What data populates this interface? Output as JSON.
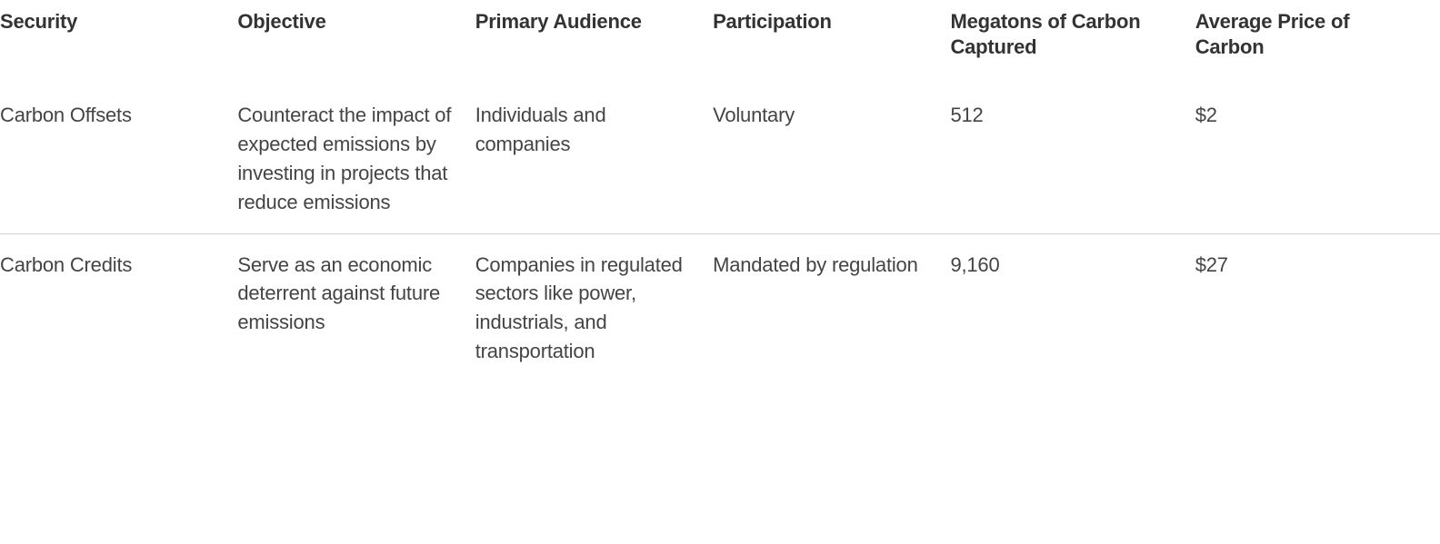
{
  "table": {
    "type": "table",
    "background_color": "#ffffff",
    "divider_color": "#d0d0d0",
    "header": {
      "font_weight": 700,
      "font_size_pt": 17,
      "color": "#333333"
    },
    "body": {
      "font_weight": 300,
      "font_size_pt": 17,
      "color": "#444444"
    },
    "column_widths_pct": [
      16.5,
      16.5,
      16.5,
      16.5,
      17,
      17
    ],
    "columns": [
      "Security",
      "Objective",
      "Primary Audience",
      "Participation",
      "Megatons of Carbon Captured",
      "Average Price of Carbon"
    ],
    "rows": [
      {
        "security": "Carbon Offsets",
        "objective": "Counteract the impact of expected emissions by investing in projects that reduce emissions",
        "audience": "Individuals and companies",
        "participation": "Voluntary",
        "megatons": "512",
        "price": "$2"
      },
      {
        "security": "Carbon Credits",
        "objective": "Serve as an economic deterrent against future emissions",
        "audience": "Companies in regulated sectors like power, industrials, and transportation",
        "participation": "Mandated by regulation",
        "megatons": "9,160",
        "price": "$27"
      }
    ]
  }
}
